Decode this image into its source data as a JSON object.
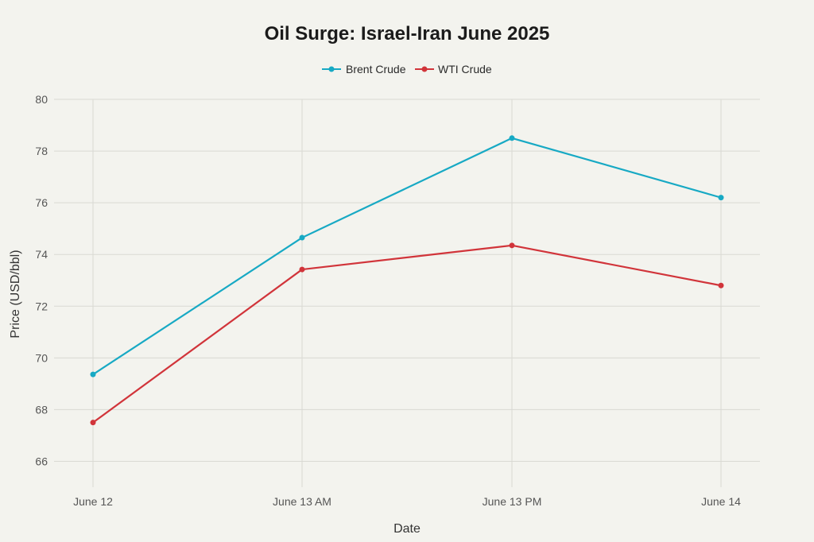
{
  "chart_data": {
    "type": "line",
    "title": "Oil Surge: Israel-Iran June 2025",
    "xlabel": "Date",
    "ylabel": "Price (USD/bbl)",
    "categories": [
      "June 12",
      "June 13 AM",
      "June 13 PM",
      "June 14"
    ],
    "ylim": [
      65,
      80
    ],
    "yticks": [
      66,
      68,
      70,
      72,
      74,
      76,
      78,
      80
    ],
    "grid": true,
    "legend": "top-center",
    "series": [
      {
        "name": "Brent Crude",
        "color": "#17a9c4",
        "values": [
          69.36,
          74.65,
          78.5,
          76.2
        ]
      },
      {
        "name": "WTI Crude",
        "color": "#d1343a",
        "values": [
          67.5,
          73.42,
          74.35,
          72.8
        ]
      }
    ]
  }
}
